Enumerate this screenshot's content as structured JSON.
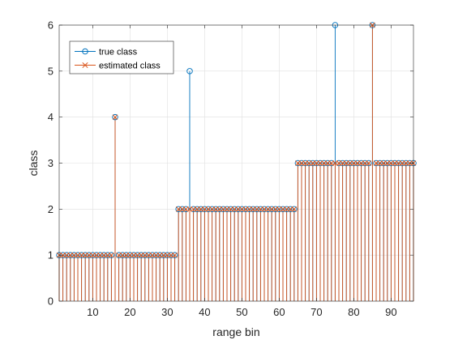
{
  "chart_data": {
    "type": "stem",
    "xlabel": "range bin",
    "ylabel": "class",
    "xlim": [
      1,
      96
    ],
    "ylim": [
      0,
      6
    ],
    "xticks": [
      10,
      20,
      30,
      40,
      50,
      60,
      70,
      80,
      90
    ],
    "yticks": [
      0,
      1,
      2,
      3,
      4,
      5,
      6
    ],
    "grid": true,
    "legend_position": "top-left",
    "x_start": 1,
    "series": [
      {
        "name": "true class",
        "marker": "circle",
        "color": "#0072BD",
        "values": [
          1,
          1,
          1,
          1,
          1,
          1,
          1,
          1,
          1,
          1,
          1,
          1,
          1,
          1,
          1,
          4,
          1,
          1,
          1,
          1,
          1,
          1,
          1,
          1,
          1,
          1,
          1,
          1,
          1,
          1,
          1,
          1,
          2,
          2,
          2,
          5,
          2,
          2,
          2,
          2,
          2,
          2,
          2,
          2,
          2,
          2,
          2,
          2,
          2,
          2,
          2,
          2,
          2,
          2,
          2,
          2,
          2,
          2,
          2,
          2,
          2,
          2,
          2,
          2,
          3,
          3,
          3,
          3,
          3,
          3,
          3,
          3,
          3,
          3,
          6,
          3,
          3,
          3,
          3,
          3,
          3,
          3,
          3,
          3,
          6,
          3,
          3,
          3,
          3,
          3,
          3,
          3,
          3,
          3,
          3,
          3
        ]
      },
      {
        "name": "estimated class",
        "marker": "x",
        "color": "#D95319",
        "values": [
          1,
          1,
          1,
          1,
          1,
          1,
          1,
          1,
          1,
          1,
          1,
          1,
          1,
          1,
          1,
          4,
          1,
          1,
          1,
          1,
          1,
          1,
          1,
          1,
          1,
          1,
          1,
          1,
          1,
          1,
          1,
          1,
          2,
          2,
          2,
          2,
          2,
          2,
          2,
          2,
          2,
          2,
          2,
          2,
          2,
          2,
          2,
          2,
          2,
          2,
          2,
          2,
          2,
          2,
          2,
          2,
          2,
          2,
          2,
          2,
          2,
          2,
          2,
          2,
          3,
          3,
          3,
          3,
          3,
          3,
          3,
          3,
          3,
          3,
          3,
          3,
          3,
          3,
          3,
          3,
          3,
          3,
          3,
          3,
          6,
          3,
          3,
          3,
          3,
          3,
          3,
          3,
          3,
          3,
          3,
          3
        ]
      }
    ]
  }
}
